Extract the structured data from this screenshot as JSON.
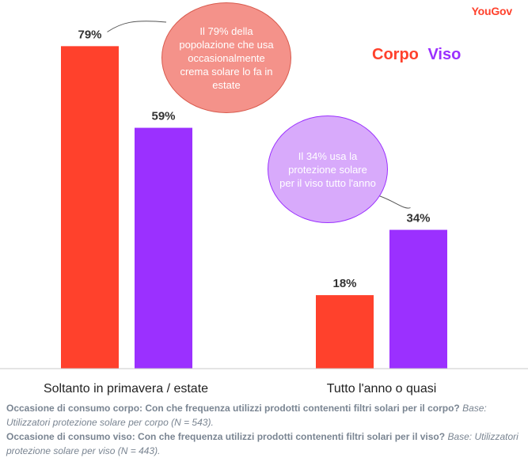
{
  "brand": "YouGov",
  "legend": [
    {
      "label": "Corpo",
      "color": "#ff412c"
    },
    {
      "label": "Viso",
      "color": "#9b30ff"
    }
  ],
  "chart_data": {
    "type": "bar",
    "categories": [
      "Soltanto in primavera / estate",
      "Tutto l'anno o quasi"
    ],
    "series": [
      {
        "name": "Corpo",
        "values": [
          79,
          18
        ],
        "color": "#ff412c"
      },
      {
        "name": "Viso",
        "values": [
          59,
          34
        ],
        "color": "#9b30ff"
      }
    ],
    "data_labels": [
      [
        "79%",
        "18%"
      ],
      [
        "59%",
        "34%"
      ]
    ],
    "ylim": [
      0,
      100
    ],
    "grid": false,
    "legend_position": "top-right"
  },
  "annotations": {
    "corpo_bubble": "Il 79% della popolazione che usa occasionalmente crema solare lo fa in estate",
    "viso_bubble": "Il 34% usa la protezione solare per il viso tutto l'anno"
  },
  "notes": {
    "q1_label": "Occasione di consumo corpo",
    "q1_text": ": Con che frequenza utilizzi prodotti contenenti filtri solari per il corpo?",
    "q1_base": "Base: Utilizzatori protezione solare per corpo (N = 543).",
    "q2_label": "Occasione di consumo viso",
    "q2_text": ": Con che frequenza utilizzi prodotti contenenti filtri solari per il viso?",
    "q2_base": "Base: Utilizzatori protezione solare per viso (N = 443)."
  }
}
